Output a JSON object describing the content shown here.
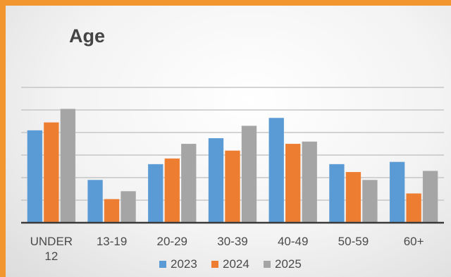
{
  "chart_data": {
    "type": "bar",
    "title": "Age",
    "categories": [
      "UNDER 12",
      "13-19",
      "20-29",
      "30-39",
      "40-49",
      "50-59",
      "60+"
    ],
    "category_lines": [
      [
        "UNDER",
        "12"
      ],
      [
        "13-19"
      ],
      [
        "20-29"
      ],
      [
        "30-39"
      ],
      [
        "40-49"
      ],
      [
        "50-59"
      ],
      [
        "60+"
      ]
    ],
    "series": [
      {
        "name": "2023",
        "color": "#5b9bd5",
        "values": [
          4.1,
          1.9,
          2.6,
          3.75,
          4.65,
          2.6,
          2.7
        ]
      },
      {
        "name": "2024",
        "color": "#ed7d31",
        "values": [
          4.45,
          1.05,
          2.85,
          3.2,
          3.5,
          2.25,
          1.3
        ]
      },
      {
        "name": "2025",
        "color": "#a5a5a5",
        "values": [
          5.05,
          1.4,
          3.5,
          4.3,
          3.6,
          1.9,
          2.3
        ]
      }
    ],
    "ylim": [
      0,
      6
    ],
    "grid": true,
    "y_tick_labels_shown": false,
    "legend_position": "bottom"
  }
}
